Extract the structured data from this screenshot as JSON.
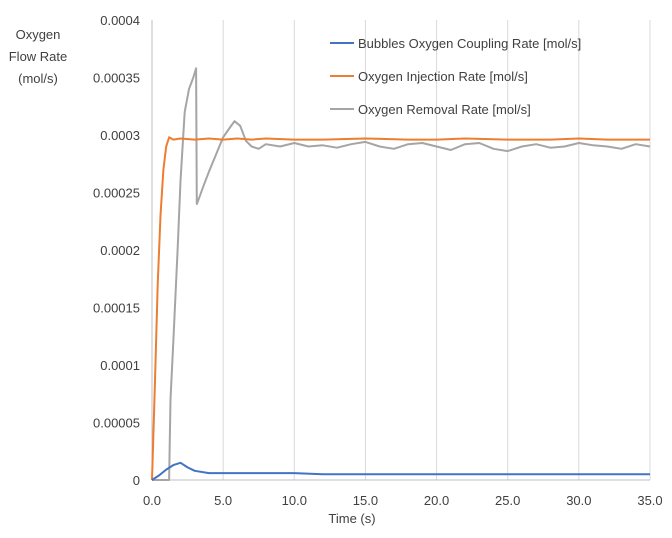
{
  "chart_data": {
    "type": "line",
    "title": "",
    "ylabel": "Oxygen\nFlow Rate\n(mol/s)",
    "xlabel": "Time (s)",
    "xlim": [
      0,
      35
    ],
    "ylim": [
      0,
      0.0004
    ],
    "x_ticks": [
      "0.0",
      "5.0",
      "10.0",
      "15.0",
      "20.0",
      "25.0",
      "30.0",
      "35.0"
    ],
    "y_ticks": [
      "0",
      "0.00005",
      "0.0001",
      "0.00015",
      "0.0002",
      "0.00025",
      "0.0003",
      "0.00035",
      "0.0004"
    ],
    "grid": "vertical gridlines",
    "legend": "top-right",
    "series": [
      {
        "name": "Bubbles Oxygen Coupling Rate [mol/s]",
        "color": "#4472C4",
        "x": [
          0.0,
          0.5,
          1.0,
          1.5,
          2.0,
          2.5,
          3.0,
          4.0,
          5.0,
          6.0,
          8.0,
          10.0,
          12.0,
          15.0,
          18.0,
          20.0,
          22.0,
          25.0,
          28.0,
          30.0,
          32.0,
          35.0
        ],
        "y": [
          0.0,
          4e-06,
          9e-06,
          1.3e-05,
          1.5e-05,
          1.1e-05,
          8e-06,
          6e-06,
          6e-06,
          6e-06,
          6e-06,
          6e-06,
          5e-06,
          5e-06,
          5e-06,
          5e-06,
          5e-06,
          5e-06,
          5e-06,
          5e-06,
          5e-06,
          5e-06
        ]
      },
      {
        "name": "Oxygen Injection Rate [mol/s]",
        "color": "#ED7D31",
        "x": [
          0.0,
          0.2,
          0.4,
          0.6,
          0.8,
          1.0,
          1.2,
          1.5,
          2.0,
          3.0,
          4.0,
          5.0,
          6.0,
          7.0,
          8.0,
          10.0,
          12.0,
          15.0,
          18.0,
          20.0,
          22.0,
          25.0,
          28.0,
          30.0,
          32.0,
          35.0
        ],
        "y": [
          0.0,
          8e-05,
          0.00017,
          0.00023,
          0.00027,
          0.00029,
          0.000298,
          0.000296,
          0.000297,
          0.000296,
          0.000297,
          0.000296,
          0.000297,
          0.000296,
          0.000297,
          0.000296,
          0.000296,
          0.000297,
          0.000296,
          0.000296,
          0.000297,
          0.000296,
          0.000296,
          0.000297,
          0.000296,
          0.000296
        ]
      },
      {
        "name": "Oxygen Removal Rate [mol/s]",
        "color": "#A5A5A5",
        "x": [
          0.0,
          1.2,
          1.3,
          1.5,
          1.8,
          2.0,
          2.3,
          2.6,
          2.9,
          3.1,
          3.15,
          3.3,
          3.6,
          4.0,
          4.5,
          5.0,
          5.5,
          5.8,
          6.2,
          6.6,
          7.0,
          7.5,
          8.0,
          9.0,
          10.0,
          11.0,
          12.0,
          13.0,
          14.0,
          15.0,
          16.0,
          17.0,
          18.0,
          19.0,
          20.0,
          21.0,
          22.0,
          23.0,
          24.0,
          25.0,
          26.0,
          27.0,
          28.0,
          29.0,
          30.0,
          31.0,
          32.0,
          33.0,
          34.0,
          35.0
        ],
        "y": [
          0.0,
          0.0,
          7e-05,
          0.00012,
          0.0002,
          0.00026,
          0.00032,
          0.00034,
          0.00035,
          0.000358,
          0.00024,
          0.000245,
          0.000255,
          0.000268,
          0.000283,
          0.000298,
          0.000307,
          0.000312,
          0.000308,
          0.000295,
          0.00029,
          0.000288,
          0.000292,
          0.00029,
          0.000293,
          0.00029,
          0.000291,
          0.000289,
          0.000292,
          0.000294,
          0.00029,
          0.000288,
          0.000292,
          0.000293,
          0.00029,
          0.000287,
          0.000292,
          0.000293,
          0.000288,
          0.000286,
          0.00029,
          0.000292,
          0.000289,
          0.00029,
          0.000293,
          0.000291,
          0.00029,
          0.000288,
          0.000292,
          0.00029
        ]
      }
    ]
  }
}
